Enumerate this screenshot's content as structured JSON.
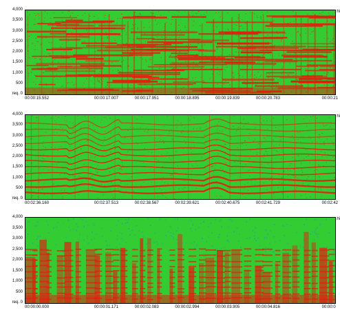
{
  "panels": [
    {
      "name": "spectrogram-1",
      "y_ticks": [
        "4,000",
        "3,500",
        "3,000",
        "2,500",
        "2,000",
        "1,500",
        "1,000",
        "500",
        "req. 0"
      ],
      "x_ticks": [
        "00:00:15.552",
        "00:00:17.007",
        "00:00:17.951",
        "00:00:18.895",
        "00:00:19.839",
        "00:00:20.783",
        "00:00:21"
      ],
      "corner": "hi",
      "style": "harmonic-grid"
    },
    {
      "name": "spectrogram-2",
      "y_ticks": [
        "4,000",
        "3,500",
        "3,000",
        "2,500",
        "2,000",
        "1,500",
        "1,000",
        "500",
        "req. 0"
      ],
      "x_ticks": [
        "00:02:36.160",
        "00:02:37.513",
        "00:02:38.567",
        "00:02:39.621",
        "00:02:40.675",
        "00:02:41.729",
        "00:02:42"
      ],
      "corner": "hi",
      "style": "harmonic-lines"
    },
    {
      "name": "spectrogram-3",
      "y_ticks": [
        "4,000",
        "3,500",
        "3,000",
        "2,500",
        "2,000",
        "1,500",
        "1,000",
        "500",
        "req. 0"
      ],
      "x_ticks": [
        "00:00:00.000",
        "00:00:01.171",
        "00:00:02.083",
        "00:00:02.994",
        "00:00:03.905",
        "00:00:04.816",
        "00:00:0"
      ],
      "corner": "hi",
      "style": "speech"
    }
  ],
  "colors": {
    "background": "#33cc33",
    "energy": "#e02010",
    "low_energy": "#2aa0a0"
  }
}
